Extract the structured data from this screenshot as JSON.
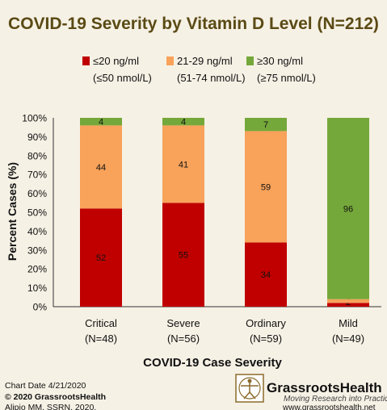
{
  "chart_data": {
    "type": "bar",
    "stacked": true,
    "title": "COVID-19 Severity by Vitamin D Level (N=212)",
    "xlabel": "COVID-19 Case Severity",
    "ylabel": "Percent Cases (%)",
    "ylim": [
      0,
      100
    ],
    "yticks": [
      "0%",
      "10%",
      "20%",
      "30%",
      "40%",
      "50%",
      "60%",
      "70%",
      "80%",
      "90%",
      "100%"
    ],
    "categories": [
      {
        "label": "Critical",
        "n": "(N=48)"
      },
      {
        "label": "Severe",
        "n": "(N=56)"
      },
      {
        "label": "Ordinary",
        "n": "(N=59)"
      },
      {
        "label": "Mild",
        "n": "(N=49)"
      }
    ],
    "series": [
      {
        "name": "≤20 ng/ml",
        "name2": "(≤50 nmol/L)",
        "color": "#c00000",
        "values": [
          52,
          55,
          34,
          2
        ]
      },
      {
        "name": "21-29 ng/ml",
        "name2": "(51-74 nmol/L)",
        "color": "#f8a25a",
        "values": [
          44,
          41,
          59,
          2
        ]
      },
      {
        "name": "≥30 ng/ml",
        "name2": "(≥75 nmol/L)",
        "color": "#75a83a",
        "values": [
          4,
          4,
          7,
          96
        ]
      }
    ],
    "data_labels": [
      [
        "52",
        "55",
        "34",
        "2"
      ],
      [
        "44",
        "41",
        "59",
        ""
      ],
      [
        "4",
        "4",
        "7",
        "96"
      ]
    ],
    "grid": false,
    "legend_position": "top"
  },
  "footer": {
    "chart_date": "Chart Date 4/21/2020",
    "copyright": "© 2020 GrassrootsHealth",
    "citation": "Alipio MM, SSRN, 2020.",
    "brand_name": "GrassrootsHealth",
    "brand_tagline": "Moving Research into Practice",
    "brand_url": "www.grassrootshealth.net"
  },
  "colors": {
    "background": "#f6f1e5",
    "title": "#5a4a14",
    "text": "#111111"
  }
}
